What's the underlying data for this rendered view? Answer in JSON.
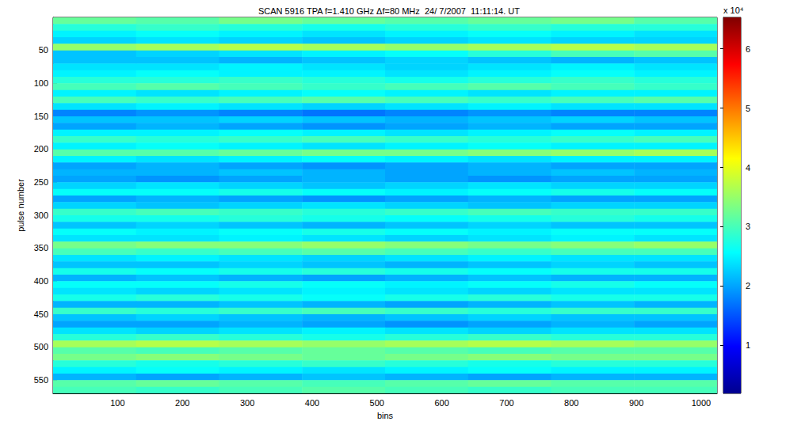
{
  "chart_data": {
    "type": "heatmap",
    "title": "SCAN 5916 TPA f=1.410 GHz Δf=80 MHz  24/ 7/2007  11:11:14. UT",
    "x_label": "bins",
    "y_label": "pulse number",
    "xlim": [
      0.5,
      1024.5
    ],
    "xticks": [
      100,
      200,
      300,
      400,
      500,
      600,
      700,
      800,
      900,
      1000
    ],
    "ylim": [
      0.5,
      570.5
    ],
    "yticks": [
      50,
      100,
      150,
      200,
      250,
      300,
      350,
      400,
      450,
      500,
      550
    ],
    "grid": false,
    "cells": {
      "x_edges": [
        0.5,
        128.5,
        256.5,
        384.5,
        512.5,
        640.5,
        768.5,
        896.5,
        1024.5
      ],
      "y_edges": [
        0.5,
        10.5,
        20.5,
        30.5,
        40.5,
        50.5,
        60.5,
        70.5,
        80.5,
        90.5,
        100.5,
        110.5,
        120.5,
        130.5,
        140.5,
        150.5,
        160.5,
        170.5,
        180.5,
        190.5,
        200.5,
        210.5,
        220.5,
        230.5,
        240.5,
        250.5,
        260.5,
        270.5,
        280.5,
        290.5,
        300.5,
        310.5,
        320.5,
        330.5,
        340.5,
        350.5,
        360.5,
        370.5,
        380.5,
        390.5,
        400.5,
        410.5,
        420.5,
        430.5,
        440.5,
        450.5,
        460.5,
        470.5,
        480.5,
        490.5,
        500.5,
        510.5,
        520.5,
        530.5,
        540.5,
        550.5,
        560.5,
        570.5
      ],
      "values": [
        [
          32000,
          31000,
          33000,
          32000,
          31000,
          32000,
          33000,
          31000
        ],
        [
          28000,
          29000,
          28000,
          27000,
          28000,
          29000,
          28000,
          28000
        ],
        [
          25000,
          26000,
          25000,
          24000,
          25000,
          26000,
          25000,
          24000
        ],
        [
          23000,
          24000,
          23000,
          22000,
          23000,
          24000,
          23000,
          23000
        ],
        [
          35000,
          36000,
          37000,
          36000,
          35000,
          36000,
          37000,
          36000
        ],
        [
          22000,
          23000,
          24000,
          25000,
          26000,
          28000,
          30000,
          31000
        ],
        [
          22000,
          22000,
          21000,
          22000,
          23000,
          22000,
          21000,
          22000
        ],
        [
          24000,
          24000,
          25000,
          24000,
          23000,
          24000,
          25000,
          24000
        ],
        [
          25000,
          26000,
          25000,
          25000,
          24000,
          25000,
          26000,
          25000
        ],
        [
          28000,
          28000,
          29000,
          28000,
          27000,
          28000,
          29000,
          28000
        ],
        [
          30000,
          31000,
          30000,
          29000,
          30000,
          31000,
          30000,
          29000
        ],
        [
          25000,
          24000,
          25000,
          26000,
          25000,
          24000,
          25000,
          25000
        ],
        [
          30000,
          29000,
          30000,
          31000,
          30000,
          29000,
          30000,
          31000
        ],
        [
          24000,
          25000,
          24000,
          23000,
          24000,
          25000,
          24000,
          24000
        ],
        [
          18000,
          19000,
          18000,
          17000,
          18000,
          19000,
          18000,
          18000
        ],
        [
          22000,
          22000,
          23000,
          22000,
          21000,
          22000,
          23000,
          22000
        ],
        [
          20000,
          21000,
          20000,
          19000,
          20000,
          21000,
          20000,
          20000
        ],
        [
          25000,
          25000,
          26000,
          25000,
          24000,
          25000,
          26000,
          25000
        ],
        [
          29000,
          28000,
          29000,
          30000,
          29000,
          28000,
          29000,
          30000
        ],
        [
          25000,
          26000,
          25000,
          24000,
          25000,
          26000,
          25000,
          25000
        ],
        [
          31000,
          31000,
          32000,
          33000,
          33000,
          34000,
          35000,
          36000
        ],
        [
          25000,
          24000,
          25000,
          26000,
          25000,
          24000,
          25000,
          25000
        ],
        [
          20000,
          21000,
          20000,
          19000,
          20000,
          21000,
          20000,
          20000
        ],
        [
          21000,
          21000,
          22000,
          21000,
          20000,
          21000,
          22000,
          21000
        ],
        [
          20000,
          19000,
          20000,
          21000,
          20000,
          19000,
          20000,
          20000
        ],
        [
          23000,
          24000,
          23000,
          22000,
          23000,
          24000,
          23000,
          23000
        ],
        [
          26000,
          26000,
          27000,
          26000,
          25000,
          26000,
          27000,
          26000
        ],
        [
          20000,
          21000,
          20000,
          19000,
          20000,
          21000,
          20000,
          20000
        ],
        [
          23000,
          22000,
          23000,
          24000,
          23000,
          22000,
          23000,
          23000
        ],
        [
          29000,
          30000,
          29000,
          28000,
          29000,
          30000,
          29000,
          29000
        ],
        [
          27000,
          27000,
          28000,
          27000,
          26000,
          27000,
          28000,
          27000
        ],
        [
          22000,
          23000,
          22000,
          21000,
          22000,
          23000,
          22000,
          22000
        ],
        [
          26000,
          25000,
          26000,
          27000,
          26000,
          25000,
          26000,
          26000
        ],
        [
          24000,
          24000,
          25000,
          24000,
          23000,
          24000,
          25000,
          24000
        ],
        [
          33000,
          34000,
          34000,
          35000,
          34000,
          33000,
          34000,
          35000
        ],
        [
          30000,
          29000,
          30000,
          31000,
          30000,
          29000,
          30000,
          30000
        ],
        [
          24000,
          25000,
          24000,
          23000,
          24000,
          25000,
          24000,
          24000
        ],
        [
          22000,
          22000,
          23000,
          22000,
          21000,
          22000,
          23000,
          22000
        ],
        [
          27000,
          26000,
          27000,
          28000,
          27000,
          26000,
          27000,
          27000
        ],
        [
          21000,
          22000,
          21000,
          20000,
          21000,
          22000,
          21000,
          21000
        ],
        [
          26000,
          26000,
          27000,
          26000,
          25000,
          26000,
          27000,
          26000
        ],
        [
          24000,
          23000,
          24000,
          25000,
          24000,
          23000,
          24000,
          24000
        ],
        [
          27000,
          28000,
          27000,
          26000,
          27000,
          28000,
          27000,
          27000
        ],
        [
          21000,
          21000,
          22000,
          21000,
          20000,
          21000,
          22000,
          21000
        ],
        [
          29000,
          28000,
          29000,
          30000,
          29000,
          28000,
          29000,
          29000
        ],
        [
          22000,
          23000,
          22000,
          21000,
          22000,
          23000,
          22000,
          22000
        ],
        [
          20000,
          20000,
          21000,
          20000,
          19000,
          20000,
          21000,
          20000
        ],
        [
          24000,
          23000,
          24000,
          25000,
          24000,
          23000,
          24000,
          24000
        ],
        [
          28000,
          29000,
          28000,
          27000,
          28000,
          29000,
          28000,
          28000
        ],
        [
          36000,
          37000,
          36000,
          35000,
          36000,
          37000,
          36000,
          35000
        ],
        [
          31000,
          30000,
          31000,
          32000,
          31000,
          30000,
          31000,
          31000
        ],
        [
          33000,
          34000,
          33000,
          32000,
          33000,
          34000,
          33000,
          33000
        ],
        [
          28000,
          27000,
          28000,
          29000,
          28000,
          27000,
          28000,
          28000
        ],
        [
          25000,
          26000,
          25000,
          24000,
          25000,
          26000,
          25000,
          25000
        ],
        [
          21000,
          20000,
          21000,
          22000,
          21000,
          20000,
          21000,
          21000
        ],
        [
          31000,
          32000,
          31000,
          30000,
          31000,
          32000,
          31000,
          31000
        ],
        [
          30000,
          29000,
          30000,
          31000,
          30000,
          29000,
          30000,
          30000
        ]
      ]
    },
    "colorbar": {
      "range": [
        1900,
        65300
      ],
      "ticks": [
        {
          "value": 10000,
          "label": "1"
        },
        {
          "value": 20000,
          "label": "2"
        },
        {
          "value": 30000,
          "label": "3"
        },
        {
          "value": 40000,
          "label": "4"
        },
        {
          "value": 50000,
          "label": "5"
        },
        {
          "value": 60000,
          "label": "6"
        }
      ],
      "label": "x 10⁴"
    }
  }
}
